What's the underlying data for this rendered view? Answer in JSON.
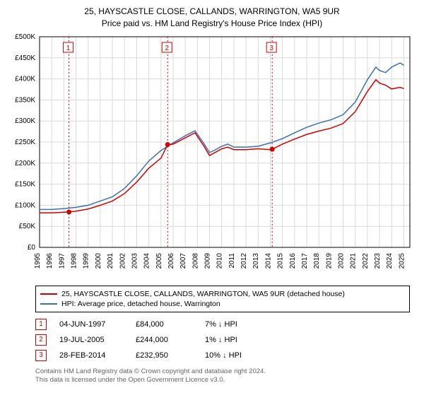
{
  "title_line1": "25, HAYSCASTLE CLOSE, CALLANDS, WARRINGTON, WA5 9UR",
  "title_line2": "Price paid vs. HM Land Registry's House Price Index (HPI)",
  "chart": {
    "type": "line",
    "background_color": "#ffffff",
    "grid_color": "#d9d9d9",
    "axis_color": "#000000",
    "x_years": [
      1995,
      1996,
      1997,
      1998,
      1999,
      2000,
      2001,
      2002,
      2003,
      2004,
      2005,
      2006,
      2007,
      2008,
      2009,
      2010,
      2011,
      2012,
      2013,
      2014,
      2015,
      2016,
      2017,
      2018,
      2019,
      2020,
      2021,
      2022,
      2023,
      2024,
      2025
    ],
    "y_ticks": [
      0,
      50000,
      100000,
      150000,
      200000,
      250000,
      300000,
      350000,
      400000,
      450000,
      500000
    ],
    "y_tick_labels": [
      "£0",
      "£50K",
      "£100K",
      "£150K",
      "£200K",
      "£250K",
      "£300K",
      "£350K",
      "£400K",
      "£450K",
      "£500K"
    ],
    "ylim": [
      0,
      500000
    ],
    "xlim": [
      1995,
      2025.5
    ],
    "label_fontsize": 10,
    "line_width": 1.5,
    "series": [
      {
        "name": "hpi",
        "color": "#3b6fb6",
        "points": [
          [
            1995,
            90000
          ],
          [
            1996,
            90000
          ],
          [
            1997,
            92000
          ],
          [
            1998,
            95000
          ],
          [
            1999,
            100000
          ],
          [
            2000,
            110000
          ],
          [
            2001,
            120000
          ],
          [
            2002,
            140000
          ],
          [
            2003,
            170000
          ],
          [
            2004,
            205000
          ],
          [
            2005,
            230000
          ],
          [
            2006,
            248000
          ],
          [
            2007,
            265000
          ],
          [
            2007.8,
            277000
          ],
          [
            2008.5,
            248000
          ],
          [
            2009,
            225000
          ],
          [
            2009.5,
            232000
          ],
          [
            2010,
            240000
          ],
          [
            2010.5,
            245000
          ],
          [
            2011,
            238000
          ],
          [
            2012,
            238000
          ],
          [
            2013,
            240000
          ],
          [
            2014,
            248000
          ],
          [
            2015,
            258000
          ],
          [
            2016,
            272000
          ],
          [
            2017,
            285000
          ],
          [
            2018,
            295000
          ],
          [
            2019,
            303000
          ],
          [
            2020,
            315000
          ],
          [
            2021,
            345000
          ],
          [
            2022,
            398000
          ],
          [
            2022.7,
            428000
          ],
          [
            2023,
            420000
          ],
          [
            2023.5,
            415000
          ],
          [
            2024,
            428000
          ],
          [
            2024.7,
            438000
          ],
          [
            2025,
            432000
          ]
        ]
      },
      {
        "name": "property",
        "color": "#d00000",
        "points": [
          [
            1995,
            82000
          ],
          [
            1996,
            82000
          ],
          [
            1997.42,
            84000
          ],
          [
            1998,
            86000
          ],
          [
            1999,
            91000
          ],
          [
            2000,
            100000
          ],
          [
            2001,
            110000
          ],
          [
            2002,
            128000
          ],
          [
            2003,
            155000
          ],
          [
            2004,
            188000
          ],
          [
            2005,
            212000
          ],
          [
            2005.55,
            244000
          ],
          [
            2006,
            245000
          ],
          [
            2007,
            260000
          ],
          [
            2007.8,
            272000
          ],
          [
            2008.5,
            242000
          ],
          [
            2009,
            218000
          ],
          [
            2009.5,
            226000
          ],
          [
            2010,
            234000
          ],
          [
            2010.5,
            238000
          ],
          [
            2011,
            232000
          ],
          [
            2012,
            232000
          ],
          [
            2013,
            234000
          ],
          [
            2014,
            232000
          ],
          [
            2014.16,
            232950
          ],
          [
            2015,
            245000
          ],
          [
            2016,
            257000
          ],
          [
            2017,
            268000
          ],
          [
            2018,
            276000
          ],
          [
            2019,
            283000
          ],
          [
            2020,
            294000
          ],
          [
            2021,
            322000
          ],
          [
            2022,
            370000
          ],
          [
            2022.7,
            398000
          ],
          [
            2023,
            390000
          ],
          [
            2023.5,
            385000
          ],
          [
            2024,
            376000
          ],
          [
            2024.7,
            380000
          ],
          [
            2025,
            377000
          ]
        ]
      }
    ],
    "sale_markers": [
      {
        "n": "1",
        "x": 1997.42,
        "y": 84000,
        "color": "#d00000"
      },
      {
        "n": "2",
        "x": 2005.55,
        "y": 244000,
        "color": "#d00000"
      },
      {
        "n": "3",
        "x": 2014.16,
        "y": 232950,
        "color": "#d00000"
      }
    ],
    "marker_line_color": "#d00000",
    "marker_dot_radius": 3.5
  },
  "legend": {
    "items": [
      {
        "color": "#d00000",
        "label": "25, HAYSCASTLE CLOSE, CALLANDS, WARRINGTON, WA5 9UR (detached house)"
      },
      {
        "color": "#3b6fb6",
        "label": "HPI: Average price, detached house, Warrington"
      }
    ]
  },
  "sales": [
    {
      "n": "1",
      "date": "04-JUN-1997",
      "price": "£84,000",
      "diff": "7% ↓ HPI"
    },
    {
      "n": "2",
      "date": "19-JUL-2005",
      "price": "£244,000",
      "diff": "1% ↓ HPI"
    },
    {
      "n": "3",
      "date": "28-FEB-2014",
      "price": "£232,950",
      "diff": "10% ↓ HPI"
    }
  ],
  "footer": {
    "line1": "Contains HM Land Registry data © Crown copyright and database right 2024.",
    "line2": "This data is licensed under the Open Government Licence v3.0."
  }
}
